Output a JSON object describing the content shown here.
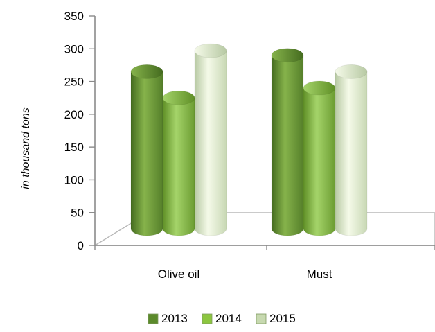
{
  "chart_data": {
    "type": "bar",
    "categories": [
      "Olive oil",
      "Must"
    ],
    "series": [
      {
        "name": "2013",
        "values": [
          265,
          290
        ]
      },
      {
        "name": "2014",
        "values": [
          225,
          240
        ]
      },
      {
        "name": "2015",
        "values": [
          297,
          265
        ]
      }
    ],
    "title": "",
    "xlabel": "",
    "ylabel": "in thousand tons",
    "ylim": [
      0,
      350
    ],
    "yticks": [
      0,
      50,
      100,
      150,
      200,
      250,
      300,
      350
    ],
    "grid": false,
    "legend": "bottom",
    "style": "3d-cylinder",
    "colors": {
      "2013": [
        "#446b1f",
        "#86b34b",
        "#557f2a"
      ],
      "2014": [
        "#5f8f26",
        "#a5d46a",
        "#6b9c31"
      ],
      "2015": [
        "#b7c9a3",
        "#f5fae9",
        "#c8d8b4"
      ]
    },
    "legend_colors": [
      "#5b8a2b",
      "#8cc63f",
      "#c7d9b0"
    ]
  }
}
